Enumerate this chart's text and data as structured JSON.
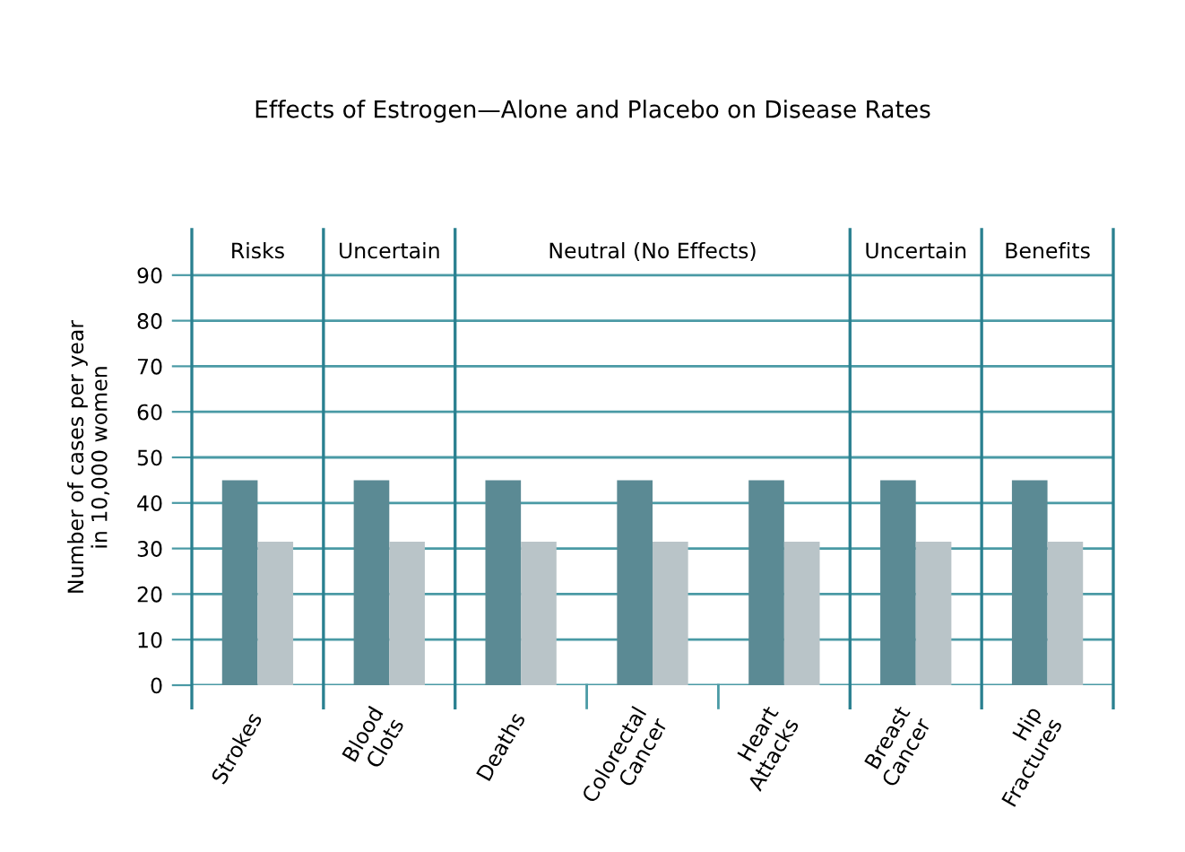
{
  "chart_data": {
    "type": "bar",
    "title": "Effects of Estrogen—Alone and Placebo on Disease Rates",
    "ylabel": "Number of cases per year\nin 10,000 women",
    "categories": [
      "Strokes",
      "Blood\nClots",
      "Deaths",
      "Colorectal\nCancer",
      "Heart\nAttacks",
      "Breast\nCancer",
      "Hip\nFractures"
    ],
    "series": [
      {
        "color": "#5b8a94",
        "values": [
          45,
          45,
          45,
          45,
          45,
          45,
          45
        ]
      },
      {
        "color": "#b9c4c8",
        "values": [
          31.5,
          31.5,
          31.5,
          31.5,
          31.5,
          31.5,
          31.5
        ]
      }
    ],
    "ylim": [
      0,
      100
    ],
    "yticks": [
      0,
      10,
      20,
      30,
      40,
      50,
      60,
      70,
      80,
      90
    ],
    "grid": "y",
    "annotations": [
      "Risks",
      "Uncertain",
      "Neutral (No Effects)",
      "Uncertain",
      "Benefits"
    ],
    "ref_lines": [
      {
        "axis": "x",
        "value": "Strokes",
        "color": "#2a8090"
      },
      {
        "axis": "x",
        "value": "Blood\nClots",
        "color": "#2a8090"
      },
      {
        "axis": "x",
        "value": "Deaths",
        "color": "#2a8090"
      },
      {
        "axis": "x",
        "value": "Breast\nCancer",
        "color": "#2a8090"
      },
      {
        "axis": "x",
        "value": "Hip\nFractures",
        "color": "#2a8090"
      }
    ]
  }
}
